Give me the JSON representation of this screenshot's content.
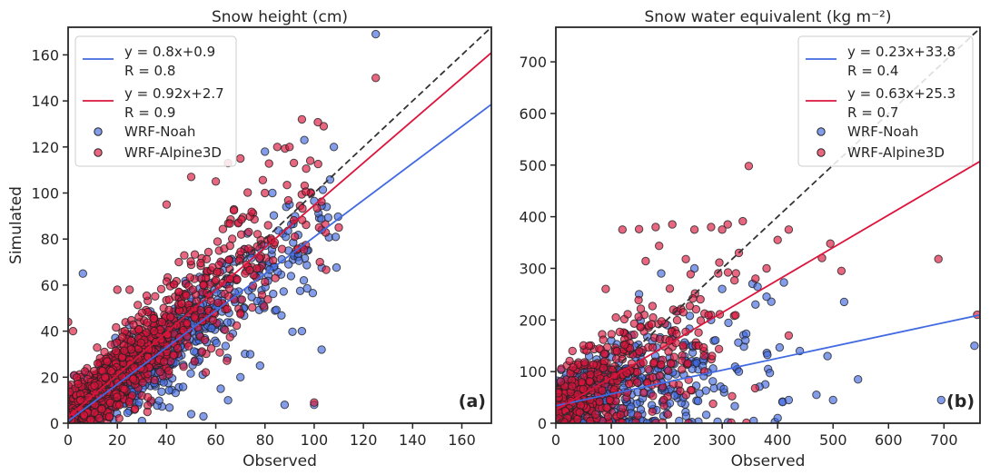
{
  "chart_data": [
    {
      "type": "scatter",
      "panel_label": "(a)",
      "title": "Snow height  (cm)",
      "xlabel": "Observed",
      "ylabel": "Simulated",
      "xlim": [
        0,
        172
      ],
      "ylim": [
        0,
        172
      ],
      "xticks": [
        0,
        20,
        40,
        60,
        80,
        100,
        120,
        140,
        160
      ],
      "yticks": [
        0,
        20,
        40,
        60,
        80,
        100,
        120,
        140,
        160
      ],
      "legend_position": "top-left",
      "identity_line": true,
      "series": [
        {
          "name": "WRF-Noah",
          "color": "#4169e1",
          "fit_label": "y = 0.8x+0.9",
          "r_label": "R = 0.8",
          "slope": 0.8,
          "intercept": 0.9,
          "cloud": {
            "count": 900,
            "seed": 11,
            "xmax": 110,
            "noise": 12
          },
          "points": [
            [
              100,
              8
            ],
            [
              103,
              32
            ],
            [
              125,
              169
            ],
            [
              108,
              120
            ],
            [
              96,
              123
            ],
            [
              62,
              15
            ],
            [
              65,
              10
            ],
            [
              70,
              20
            ],
            [
              74,
              30
            ],
            [
              78,
              25
            ],
            [
              30,
              1
            ],
            [
              50,
              4
            ],
            [
              55,
              3
            ],
            [
              83,
              100
            ],
            [
              90,
              95
            ],
            [
              80,
              118
            ],
            [
              6,
              65
            ],
            [
              88,
              8
            ],
            [
              95,
              40
            ],
            [
              60,
              50
            ],
            [
              40,
              30
            ],
            [
              20,
              15
            ],
            [
              10,
              5
            ]
          ]
        },
        {
          "name": "WRF-Alpine3D",
          "color": "#dc143c",
          "fit_label": "y = 0.92x+2.7",
          "r_label": "R = 0.9",
          "slope": 0.92,
          "intercept": 2.7,
          "cloud": {
            "count": 1100,
            "seed": 23,
            "xmax": 105,
            "noise": 13
          },
          "points": [
            [
              125,
              150
            ],
            [
              100,
              9
            ],
            [
              95,
              132
            ],
            [
              70,
              115
            ],
            [
              65,
              113
            ],
            [
              40,
              95
            ],
            [
              50,
              107
            ],
            [
              60,
              105
            ],
            [
              0,
              44
            ],
            [
              2,
              40
            ],
            [
              20,
              58
            ],
            [
              25,
              58
            ],
            [
              90,
              120
            ],
            [
              102,
              85
            ],
            [
              110,
              85
            ],
            [
              85,
              120
            ],
            [
              80,
              100
            ],
            [
              30,
              48
            ],
            [
              45,
              70
            ],
            [
              15,
              20
            ],
            [
              5,
              10
            ],
            [
              35,
              40
            ],
            [
              55,
              60
            ]
          ]
        }
      ]
    },
    {
      "type": "scatter",
      "panel_label": "(b)",
      "title": "Snow water equivalent (kg m⁻²)",
      "xlabel": "Observed",
      "ylabel": "",
      "xlim": [
        0,
        765
      ],
      "ylim": [
        0,
        767
      ],
      "xticks": [
        0,
        100,
        200,
        300,
        400,
        500,
        600,
        700
      ],
      "yticks": [
        0,
        100,
        200,
        300,
        400,
        500,
        600,
        700
      ],
      "legend_position": "top-right",
      "identity_line": true,
      "series": [
        {
          "name": "WRF-Noah",
          "color": "#4169e1",
          "fit_label": "y = 0.23x+33.8",
          "r_label": "R = 0.4",
          "slope": 0.23,
          "intercept": 33.8,
          "cloud": {
            "count": 500,
            "seed": 37,
            "xmax": 420,
            "noise": 70
          },
          "points": [
            [
              755,
              150
            ],
            [
              695,
              45
            ],
            [
              520,
              235
            ],
            [
              545,
              85
            ],
            [
              500,
              45
            ],
            [
              470,
              55
            ],
            [
              420,
              45
            ],
            [
              400,
              10
            ],
            [
              490,
              130
            ],
            [
              360,
              230
            ],
            [
              380,
              245
            ],
            [
              300,
              260
            ],
            [
              250,
              300
            ],
            [
              190,
              290
            ],
            [
              150,
              250
            ],
            [
              100,
              160
            ],
            [
              60,
              130
            ],
            [
              30,
              10
            ],
            [
              330,
              100
            ],
            [
              280,
              200
            ],
            [
              440,
              140
            ],
            [
              230,
              50
            ],
            [
              130,
              90
            ]
          ]
        },
        {
          "name": "WRF-Alpine3D",
          "color": "#dc143c",
          "fit_label": "y = 0.63x+25.3",
          "r_label": "R = 0.7",
          "slope": 0.63,
          "intercept": 25.3,
          "cloud": {
            "count": 500,
            "seed": 53,
            "xmax": 360,
            "noise": 80
          },
          "points": [
            [
              690,
              318
            ],
            [
              760,
              210
            ],
            [
              515,
              295
            ],
            [
              495,
              348
            ],
            [
              480,
              320
            ],
            [
              420,
              375
            ],
            [
              400,
              355
            ],
            [
              380,
              300
            ],
            [
              360,
              280
            ],
            [
              310,
              385
            ],
            [
              300,
              375
            ],
            [
              280,
              380
            ],
            [
              250,
              375
            ],
            [
              210,
              385
            ],
            [
              180,
              380
            ],
            [
              150,
              376
            ],
            [
              120,
              375
            ],
            [
              90,
              260
            ],
            [
              60,
              150
            ],
            [
              30,
              140
            ],
            [
              330,
              330
            ],
            [
              420,
              170
            ],
            [
              230,
              215
            ]
          ]
        }
      ]
    }
  ]
}
